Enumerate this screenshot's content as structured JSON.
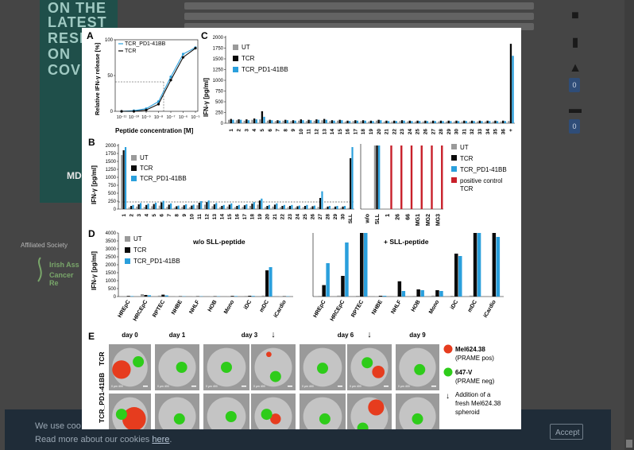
{
  "background": {
    "banner_lines": [
      "ON THE",
      "LATEST",
      "RESEA",
      "ON",
      "COVID"
    ],
    "banner_logo": "MD",
    "society_label": "Affiliated Society",
    "society_logo_text": [
      "Irish Ass",
      "Cancer Re"
    ]
  },
  "right_rail": {
    "icons": [
      "report-icon",
      "comment-icon",
      "thumbs-up-icon",
      "comment-dots-icon"
    ],
    "badge_values": [
      "0",
      "0"
    ]
  },
  "cookie": {
    "message": "We use coo",
    "read_more_prefix": "Read more about our cookies",
    "read_more_link": "here",
    "accept_label": "Accept"
  },
  "figure": {
    "panelA": {
      "letter": "A",
      "legend": [
        "TCR_PD1-41BB",
        "TCR"
      ],
      "ylabel": "Relative IFN-γ release [%]",
      "xlabel": "Peptide concentration [M]",
      "yticks": [
        "0",
        "50",
        "100"
      ],
      "xticks": [
        "10⁻¹¹",
        "10⁻¹⁰",
        "10⁻⁹",
        "10⁻⁸",
        "10⁻⁷",
        "10⁻⁶",
        "10⁻⁵"
      ]
    },
    "panelC": {
      "letter": "C",
      "legend": [
        "UT",
        "TCR",
        "TCR_PD1-41BB"
      ],
      "ylabel": "IFN-γ [pg/ml]",
      "yticks": [
        "0",
        "250",
        "500",
        "750",
        "1000",
        "1250",
        "1500",
        "1750",
        "2000"
      ],
      "xticks": [
        "1",
        "2",
        "3",
        "4",
        "5",
        "6",
        "7",
        "8",
        "9",
        "10",
        "11",
        "12",
        "13",
        "14",
        "15",
        "16",
        "17",
        "18",
        "19",
        "20",
        "21",
        "22",
        "23",
        "24",
        "25",
        "26",
        "27",
        "28",
        "29",
        "30",
        "31",
        "32",
        "33",
        "34",
        "35",
        "36",
        "+"
      ]
    },
    "panelB": {
      "letter": "B",
      "legend_left": [
        "UT",
        "TCR",
        "TCR_PD1-41BB"
      ],
      "legend_right": [
        "UT",
        "TCR",
        "TCR_PD1-41BB",
        "positive control TCR"
      ],
      "ylabel": "IFN-γ [pg/ml]",
      "yticks": [
        "0",
        "250",
        "500",
        "750",
        "1000",
        "1250",
        "1500",
        "1750",
        "2000"
      ],
      "xticks_left": [
        "1",
        "2",
        "3",
        "4",
        "5",
        "6",
        "7",
        "8",
        "9",
        "10",
        "11",
        "12",
        "13",
        "14",
        "15",
        "16",
        "17",
        "18",
        "19",
        "20",
        "21",
        "22",
        "23",
        "24",
        "25",
        "26",
        "27",
        "28",
        "29",
        "30",
        "SLL"
      ],
      "xticks_right": [
        "w/o",
        "SLL",
        "1",
        "26",
        "66",
        "MG1",
        "MG2",
        "MG3"
      ]
    },
    "panelD": {
      "letter": "D",
      "legend": [
        "UT",
        "TCR",
        "TCR_PD1-41BB"
      ],
      "ylabel": "IFN-γ [pg/ml]",
      "yticks": [
        "0",
        "500",
        "1000",
        "1500",
        "2000",
        "2500",
        "3000",
        "3500",
        "4000"
      ],
      "title_left": "w/o SLL-peptide",
      "title_right": "+ SLL-peptide",
      "cells": [
        "HREpC",
        "HRCEpC",
        "RPTEC",
        "NHBE",
        "NHLF",
        "HOB",
        "Mono",
        "iDC",
        "mDC",
        "iCardio"
      ]
    },
    "panelE": {
      "letter": "E",
      "days": [
        "day 0",
        "day 1",
        "day 3",
        "day 6",
        "day 9"
      ],
      "rows": [
        "TCR",
        "TCR_PD1-41BB"
      ],
      "scale_label": "0 μm 400",
      "legend": [
        {
          "title": "Mel624.38",
          "sub": "(PRAME pos)",
          "color": "#e63c1e"
        },
        {
          "title": "647-V",
          "sub": "(PRAME neg)",
          "color": "#2ecc1a"
        }
      ],
      "arrow_note": [
        "Addition of a",
        "fresh Mel624.38",
        "spheroid"
      ]
    }
  },
  "colors": {
    "ut": "#9a9a9a",
    "tcr": "#0a0a0a",
    "tcr_pd1": "#2a9fdc",
    "positive_control": "#c8202a"
  },
  "chart_data": [
    {
      "type": "line",
      "title": "A",
      "xlabel": "Peptide concentration [M]",
      "ylabel": "Relative IFN-γ release [%]",
      "x": [
        "1e-11",
        "1e-10",
        "1e-9",
        "1e-8",
        "1e-7",
        "1e-6",
        "1e-5"
      ],
      "series": [
        {
          "name": "TCR_PD1-41BB",
          "values": [
            0,
            1,
            4,
            15,
            53,
            88,
            98
          ]
        },
        {
          "name": "TCR",
          "values": [
            0,
            0,
            2,
            11,
            48,
            83,
            97
          ]
        }
      ],
      "ylim": [
        0,
        110
      ]
    },
    {
      "type": "bar",
      "title": "C",
      "ylabel": "IFN-γ [pg/ml]",
      "ylim": [
        0,
        2000
      ],
      "categories": [
        "1",
        "2",
        "3",
        "4",
        "5",
        "6",
        "7",
        "8",
        "9",
        "10",
        "11",
        "12",
        "13",
        "14",
        "15",
        "16",
        "17",
        "18",
        "19",
        "20",
        "21",
        "22",
        "23",
        "24",
        "25",
        "26",
        "27",
        "28",
        "29",
        "30",
        "31",
        "32",
        "33",
        "34",
        "35",
        "36",
        "+"
      ],
      "series": [
        {
          "name": "UT",
          "values": [
            80,
            70,
            60,
            80,
            90,
            60,
            50,
            60,
            50,
            60,
            50,
            60,
            70,
            50,
            60,
            40,
            50,
            50,
            40,
            60,
            40,
            40,
            50,
            40,
            40,
            40,
            40,
            40,
            40,
            40,
            40,
            40,
            40,
            40,
            40,
            40,
            50
          ]
        },
        {
          "name": "TCR",
          "values": [
            100,
            90,
            90,
            110,
            280,
            80,
            70,
            80,
            70,
            90,
            80,
            90,
            100,
            70,
            80,
            60,
            70,
            70,
            60,
            80,
            60,
            60,
            70,
            60,
            60,
            60,
            60,
            60,
            60,
            60,
            60,
            60,
            60,
            60,
            60,
            60,
            1850
          ]
        },
        {
          "name": "TCR_PD1-41BB",
          "values": [
            80,
            80,
            70,
            90,
            150,
            70,
            60,
            70,
            60,
            70,
            70,
            80,
            80,
            60,
            70,
            50,
            60,
            60,
            50,
            70,
            50,
            50,
            60,
            50,
            50,
            50,
            50,
            50,
            50,
            50,
            50,
            50,
            50,
            50,
            50,
            50,
            1570
          ]
        }
      ]
    },
    {
      "type": "bar",
      "title": "B",
      "ylabel": "IFN-γ [pg/ml]",
      "ylim": [
        0,
        2000
      ],
      "categories": [
        "1",
        "2",
        "3",
        "4",
        "5",
        "6",
        "7",
        "8",
        "9",
        "10",
        "11",
        "12",
        "13",
        "14",
        "15",
        "16",
        "17",
        "18",
        "19",
        "20",
        "21",
        "22",
        "23",
        "24",
        "25",
        "26",
        "27",
        "28",
        "29",
        "30",
        "SLL"
      ],
      "series": [
        {
          "name": "UT",
          "values": [
            1700,
            60,
            80,
            70,
            90,
            110,
            70,
            50,
            70,
            60,
            120,
            140,
            90,
            60,
            80,
            60,
            70,
            100,
            140,
            60,
            80,
            60,
            60,
            50,
            60,
            50,
            70,
            40,
            40,
            40,
            40
          ]
        },
        {
          "name": "TCR",
          "values": [
            1850,
            100,
            150,
            130,
            160,
            210,
            140,
            90,
            120,
            110,
            200,
            220,
            150,
            100,
            140,
            100,
            120,
            170,
            270,
            100,
            140,
            100,
            100,
            90,
            100,
            90,
            350,
            80,
            80,
            80,
            1600
          ]
        },
        {
          "name": "TCR_PD1-41BB",
          "values": [
            1950,
            130,
            190,
            170,
            200,
            260,
            180,
            110,
            150,
            140,
            250,
            270,
            190,
            130,
            180,
            130,
            150,
            220,
            330,
            130,
            180,
            130,
            130,
            110,
            130,
            110,
            560,
            100,
            100,
            100,
            1950
          ]
        }
      ]
    },
    {
      "type": "bar",
      "title": "B (right)",
      "ylim": [
        0,
        2000
      ],
      "categories": [
        "w/o",
        "SLL",
        "1",
        "26",
        "66",
        "MG1",
        "MG2",
        "MG3"
      ],
      "series": [
        {
          "name": "UT",
          "values": [
            0,
            2000,
            0,
            0,
            0,
            0,
            0,
            0
          ]
        },
        {
          "name": "TCR",
          "values": [
            0,
            2000,
            0,
            0,
            0,
            0,
            0,
            0
          ]
        },
        {
          "name": "TCR_PD1-41BB",
          "values": [
            0,
            2000,
            0,
            0,
            0,
            0,
            0,
            0
          ]
        },
        {
          "name": "positive control TCR",
          "values": [
            0,
            0,
            2000,
            2000,
            2000,
            2000,
            2000,
            2000
          ]
        }
      ]
    },
    {
      "type": "bar",
      "title": "D w/o SLL-peptide",
      "ylabel": "IFN-γ [pg/ml]",
      "ylim": [
        0,
        4000
      ],
      "categories": [
        "HREpC",
        "HRCEpC",
        "RPTEC",
        "NHBE",
        "NHLF",
        "HOB",
        "Mono",
        "iDC",
        "mDC",
        "iCardio"
      ],
      "series": [
        {
          "name": "UT",
          "values": [
            30,
            150,
            60,
            20,
            20,
            20,
            30,
            40,
            60,
            20
          ]
        },
        {
          "name": "TCR",
          "values": [
            40,
            100,
            120,
            20,
            20,
            20,
            40,
            50,
            1650,
            20
          ]
        },
        {
          "name": "TCR_PD1-41BB",
          "values": [
            30,
            80,
            70,
            20,
            20,
            20,
            30,
            40,
            1850,
            20
          ]
        }
      ]
    },
    {
      "type": "bar",
      "title": "D + SLL-peptide",
      "ylim": [
        0,
        4000
      ],
      "categories": [
        "HREpC",
        "HRCEpC",
        "RPTEC",
        "NHBE",
        "NHLF",
        "HOB",
        "Mono",
        "iDC",
        "mDC",
        "iCardio"
      ],
      "series": [
        {
          "name": "UT",
          "values": [
            40,
            60,
            50,
            20,
            20,
            40,
            60,
            50,
            60,
            30
          ]
        },
        {
          "name": "TCR",
          "values": [
            720,
            1300,
            4000,
            50,
            960,
            450,
            400,
            2700,
            4000,
            4000
          ]
        },
        {
          "name": "TCR_PD1-41BB",
          "values": [
            2100,
            3400,
            4000,
            50,
            350,
            400,
            350,
            2550,
            4000,
            3750
          ]
        }
      ]
    }
  ]
}
